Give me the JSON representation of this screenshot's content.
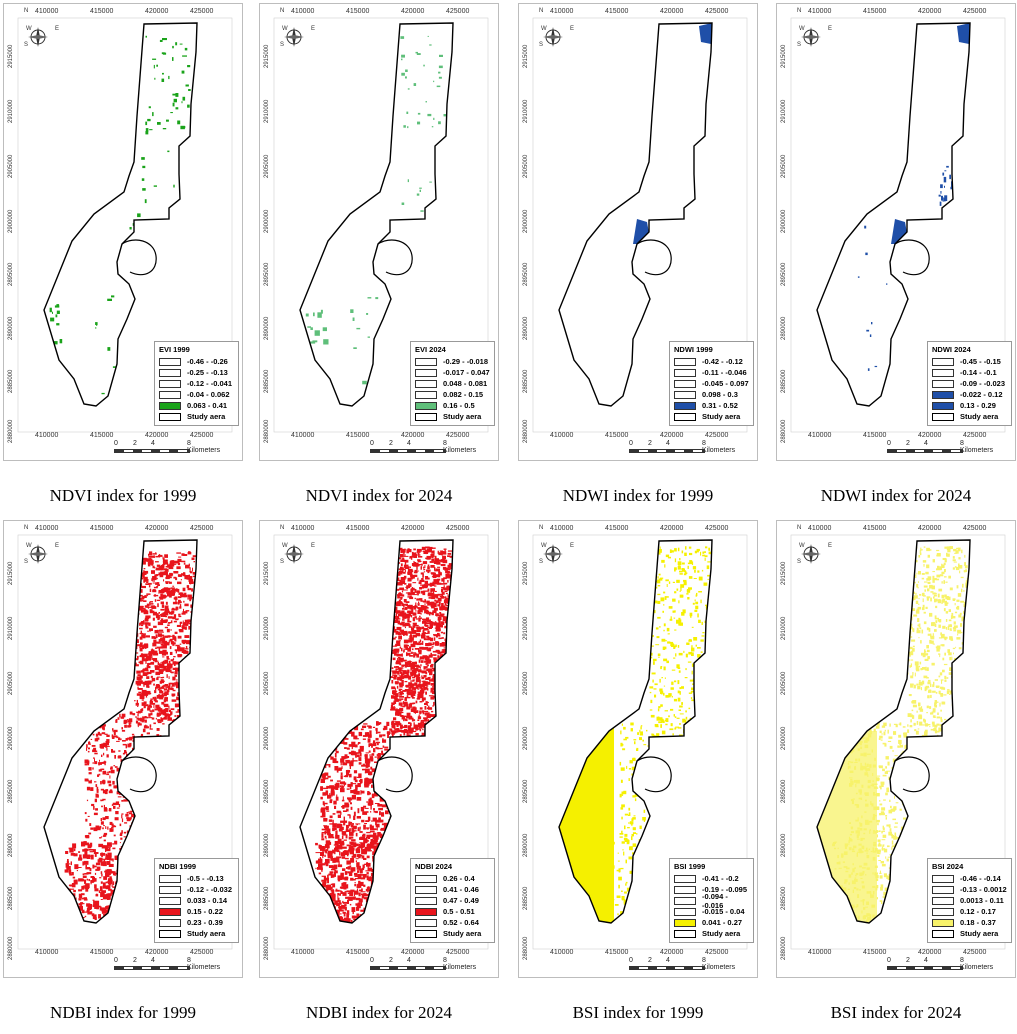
{
  "panels": [
    {
      "caption": "NDVI index for 1999",
      "legend_title": "EVI 1999",
      "color": "#1aa31a",
      "classes": [
        "-0.46 - -0.26",
        "-0.25 - -0.13",
        "-0.12 - -0.041",
        "-0.04 - 0.062",
        "0.063 - 0.41"
      ],
      "filled_class": 4,
      "pattern": "ndvi99"
    },
    {
      "caption": "NDVI index for 2024",
      "legend_title": "EVI 2024",
      "color": "#5fbf7a",
      "classes": [
        "-0.29 - -0.018",
        "-0.017 - 0.047",
        "0.048 - 0.081",
        "0.082 - 0.15",
        "0.16 - 0.5"
      ],
      "filled_class": 4,
      "pattern": "ndvi24"
    },
    {
      "caption": "NDWI index for 1999",
      "legend_title": "NDWI 1999",
      "color": "#1f4fa8",
      "classes": [
        "-0.42 - -0.12",
        "-0.11 - -0.046",
        "-0.045 - 0.097",
        "0.098 - 0.3",
        "0.31 - 0.52"
      ],
      "filled_class": 4,
      "pattern": "ndwi99"
    },
    {
      "caption": "NDWI index for 2024",
      "legend_title": "NDWI 2024",
      "color": "#1f4fa8",
      "classes": [
        "-0.45 - -0.15",
        "-0.14 - -0.1",
        "-0.09 - -0.023",
        "-0.022 - 0.12",
        "0.13 - 0.29"
      ],
      "filled_class": [
        3,
        4
      ],
      "pattern": "ndwi24"
    },
    {
      "caption": "NDBI index for 1999",
      "legend_title": "NDBI 1999",
      "color": "#e8141c",
      "classes": [
        "-0.5 - -0.13",
        "-0.12 - -0.032",
        "0.033 - 0.14",
        "0.15 - 0.22",
        "0.23 - 0.39"
      ],
      "filled_class": 3,
      "pattern": "ndbi99"
    },
    {
      "caption": "NDBI index for 2024",
      "legend_title": "NDBI 2024",
      "color": "#e8141c",
      "classes": [
        "0.26 - 0.4",
        "0.41 - 0.46",
        "0.47 - 0.49",
        "0.5 - 0.51",
        "0.52 - 0.64"
      ],
      "filled_class": 3,
      "pattern": "ndbi24"
    },
    {
      "caption": "BSI index for 1999",
      "legend_title": "BSI 1999",
      "color": "#f5f000",
      "classes": [
        "-0.41 - -0.2",
        "-0.19 - -0.095",
        "-0.094 - -0.016",
        "-0.015 - 0.04",
        "0.041 - 0.27"
      ],
      "filled_class": 4,
      "pattern": "bsi99"
    },
    {
      "caption": "BSI index for 2024",
      "legend_title": "BSI 2024",
      "color": "#f7f26a",
      "classes": [
        "-0.46 - -0.14",
        "-0.13 - 0.0012",
        "0.0013 - 0.11",
        "0.12 - 0.17",
        "0.18 - 0.37"
      ],
      "filled_class": 4,
      "pattern": "bsi24"
    }
  ],
  "study_area_label": "Study aera",
  "x_ticks": [
    "410000",
    "415000",
    "420000",
    "425000"
  ],
  "y_ticks": [
    "2915000",
    "2910000",
    "2905000",
    "2900000",
    "2895000",
    "2890000",
    "2885000",
    "2880000"
  ],
  "scale_labels": [
    "0",
    "2",
    "4",
    "8 Kilometers"
  ],
  "compass": {
    "n": "N",
    "s": "S",
    "e": "E",
    "w": "W"
  },
  "icons": {
    "compass": "north-arrow-compass-icon"
  }
}
